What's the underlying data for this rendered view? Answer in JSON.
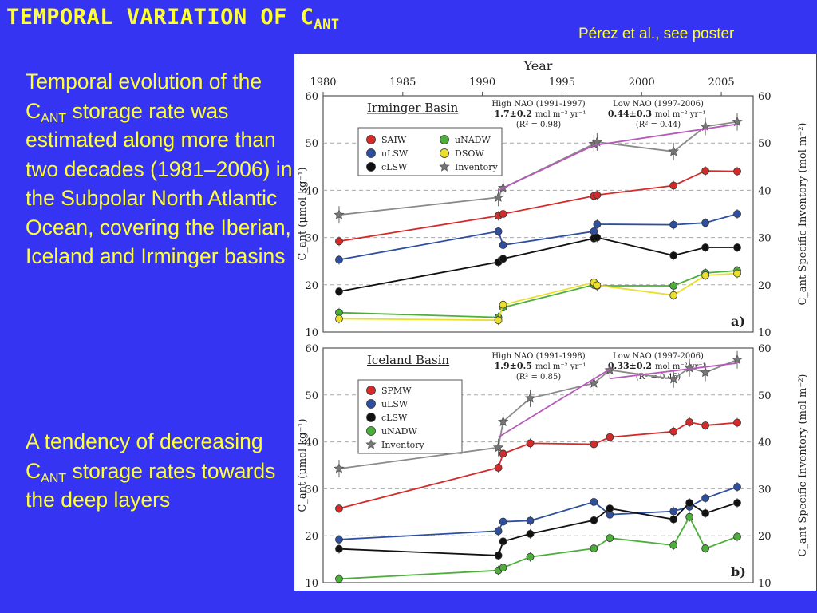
{
  "slide": {
    "title_main": "TEMPORAL VARIATION OF C",
    "title_sub": "ANT",
    "citation": "Pérez et al., see poster",
    "para1": {
      "before": "Temporal evolution of the C",
      "sub": "ANT",
      "after": " storage rate was estimated along more than two decades (1981–2006) in the Subpolar North Atlantic Ocean, covering the Iberian, Iceland and Irminger basins"
    },
    "para2": {
      "before": "A tendency of decreasing C",
      "sub": "ANT",
      "after": " storage rates towards the deep layers"
    }
  },
  "chart_data": [
    {
      "type": "line",
      "panel_label": "a)",
      "basin": "Irminger Basin",
      "xlabel": "Year",
      "x_ticks": [
        1980,
        1985,
        1990,
        1995,
        2000,
        2005
      ],
      "xlim": [
        1980,
        2007
      ],
      "ylim": [
        10,
        60
      ],
      "y_ticks": [
        10,
        20,
        30,
        40,
        50,
        60
      ],
      "ylabel_left": "C_ant (μmol kg⁻¹)",
      "ylabel_right": "C_ant Specific Inventory (mol m⁻²)",
      "grid": "dashed",
      "legend_position": "left",
      "annotations": [
        {
          "title": "High NAO (1991-1997)",
          "rate": "1.7±0.2",
          "unit": "mol m⁻² yr⁻¹",
          "r2": "(R² = 0.98)"
        },
        {
          "title": "Low NAO (1997-2006)",
          "rate": "0.44±0.3",
          "unit": "mol m⁻² yr⁻¹",
          "r2": "(R² = 0.44)"
        }
      ],
      "series": [
        {
          "name": "SAIW",
          "color": "#d62a2a",
          "marker": "circle",
          "x": [
            1981,
            1991,
            1991.3,
            1997,
            1997.2,
            2002,
            2004,
            2006
          ],
          "y": [
            29.2,
            34.6,
            35.0,
            38.8,
            39.0,
            41.0,
            44.1,
            44.0
          ]
        },
        {
          "name": "uLSW",
          "color": "#2e4fa0",
          "marker": "circle",
          "x": [
            1981,
            1991,
            1991.3,
            1997,
            1997.2,
            2002,
            2004,
            2006
          ],
          "y": [
            25.3,
            31.3,
            28.4,
            31.3,
            32.8,
            32.7,
            33.1,
            35.0
          ]
        },
        {
          "name": "cLSW",
          "color": "#111111",
          "marker": "circle",
          "x": [
            1981,
            1991,
            1991.3,
            1997,
            1997.2,
            2002,
            2004,
            2006
          ],
          "y": [
            18.6,
            24.8,
            25.5,
            29.8,
            30.0,
            26.2,
            27.9,
            27.9
          ]
        },
        {
          "name": "uNADW",
          "color": "#4caf3a",
          "marker": "circle",
          "x": [
            1981,
            1991,
            1991.3,
            1997,
            1997.2,
            2002,
            2004,
            2006
          ],
          "y": [
            14.1,
            13.1,
            15.2,
            20.0,
            19.8,
            19.8,
            22.5,
            23.0
          ]
        },
        {
          "name": "DSOW",
          "color": "#eadf2a",
          "marker": "circle",
          "x": [
            1981,
            1991,
            1991.3,
            1997,
            1997.2,
            2002,
            2004,
            2006
          ],
          "y": [
            12.8,
            12.5,
            15.8,
            20.5,
            19.9,
            17.8,
            22.0,
            22.4
          ]
        },
        {
          "name": "Inventory",
          "color": "#8a8a8a",
          "marker": "star",
          "axis": "right",
          "x": [
            1981,
            1991,
            1991.3,
            1997,
            1997.2,
            2002,
            2004,
            2006
          ],
          "y": [
            34.8,
            38.5,
            40.5,
            49.8,
            50.2,
            48.2,
            53.5,
            54.5
          ]
        }
      ],
      "trend_lines": [
        {
          "period": "High NAO (1991-1997)",
          "color": "#b55ab8",
          "x": [
            1991,
            1997
          ],
          "y": [
            40.0,
            49.5
          ]
        },
        {
          "period": "Low NAO (1997-2006)",
          "color": "#b55ab8",
          "x": [
            1997,
            2006
          ],
          "y": [
            49.5,
            54.0
          ]
        }
      ]
    },
    {
      "type": "line",
      "panel_label": "b)",
      "basin": "Iceland Basin",
      "xlim": [
        1980,
        2007
      ],
      "ylim": [
        10,
        60
      ],
      "y_ticks": [
        10,
        20,
        30,
        40,
        50,
        60
      ],
      "ylabel_left": "C_ant (μmol kg⁻¹)",
      "ylabel_right": "C_ant Specific Inventory (mol m⁻²)",
      "grid": "dashed",
      "legend_position": "left",
      "annotations": [
        {
          "title": "High NAO (1991-1998)",
          "rate": "1.9±0.5",
          "unit": "mol m⁻² yr⁻¹",
          "r2": "(R² = 0.85)"
        },
        {
          "title": "Low NAO (1997-2006)",
          "rate": "0.33±0.2",
          "unit": "mol m⁻² yr⁻¹",
          "r2": "(R² = 0.45)"
        }
      ],
      "series": [
        {
          "name": "SPMW",
          "color": "#d62a2a",
          "marker": "circle",
          "x": [
            1981,
            1991,
            1991.3,
            1993,
            1997,
            1998,
            2002,
            2003,
            2004,
            2006
          ],
          "y": [
            25.8,
            34.5,
            37.5,
            39.7,
            39.5,
            41.0,
            42.2,
            44.2,
            43.5,
            44.1
          ]
        },
        {
          "name": "uLSW",
          "color": "#2e4fa0",
          "marker": "circle",
          "x": [
            1981,
            1991,
            1991.3,
            1993,
            1997,
            1998,
            2002,
            2003,
            2004,
            2006
          ],
          "y": [
            19.2,
            21.0,
            23.0,
            23.2,
            27.2,
            24.5,
            25.2,
            26.2,
            28.0,
            30.4
          ]
        },
        {
          "name": "cLSW",
          "color": "#111111",
          "marker": "circle",
          "x": [
            1981,
            1991,
            1991.3,
            1993,
            1997,
            1998,
            2002,
            2003,
            2004,
            2006
          ],
          "y": [
            17.2,
            15.8,
            18.8,
            20.4,
            23.3,
            25.8,
            23.5,
            27.0,
            24.8,
            27.0
          ]
        },
        {
          "name": "uNADW",
          "color": "#4caf3a",
          "marker": "circle",
          "x": [
            1981,
            1991,
            1991.3,
            1993,
            1997,
            1998,
            2002,
            2003,
            2004,
            2006
          ],
          "y": [
            10.8,
            12.6,
            13.2,
            15.5,
            17.3,
            19.5,
            18.0,
            24.0,
            17.3,
            19.8
          ]
        },
        {
          "name": "Inventory",
          "color": "#8a8a8a",
          "marker": "star",
          "axis": "right",
          "x": [
            1981,
            1991,
            1991.3,
            1993,
            1997,
            1998,
            2002,
            2003,
            2004,
            2006
          ],
          "y": [
            34.3,
            38.8,
            44.3,
            49.3,
            52.5,
            55.3,
            53.4,
            55.8,
            54.8,
            57.5
          ]
        }
      ],
      "trend_lines": [
        {
          "period": "High NAO (1991-1998)",
          "color": "#b55ab8",
          "x": [
            1991,
            1998
          ],
          "y": [
            41.0,
            55.5
          ]
        },
        {
          "period": "Low NAO (1997-2006)",
          "color": "#b55ab8",
          "x": [
            1998,
            2006
          ],
          "y": [
            53.5,
            56.8
          ]
        }
      ]
    }
  ]
}
